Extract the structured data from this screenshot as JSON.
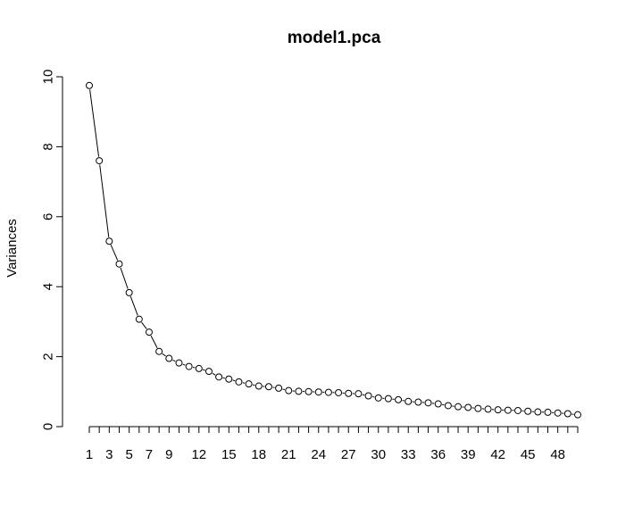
{
  "chart_data": {
    "type": "scatter",
    "title": "model1.pca",
    "xlabel": "",
    "ylabel": "Variances",
    "x": [
      1,
      2,
      3,
      4,
      5,
      6,
      7,
      8,
      9,
      10,
      11,
      12,
      13,
      14,
      15,
      16,
      17,
      18,
      19,
      20,
      21,
      22,
      23,
      24,
      25,
      26,
      27,
      28,
      29,
      30,
      31,
      32,
      33,
      34,
      35,
      36,
      37,
      38,
      39,
      40,
      41,
      42,
      43,
      44,
      45,
      46,
      47,
      48,
      49,
      50
    ],
    "values": [
      9.75,
      7.6,
      5.3,
      4.65,
      3.83,
      3.07,
      2.7,
      2.15,
      1.95,
      1.82,
      1.72,
      1.66,
      1.58,
      1.42,
      1.36,
      1.28,
      1.22,
      1.16,
      1.14,
      1.1,
      1.03,
      1.01,
      1.0,
      0.99,
      0.98,
      0.97,
      0.95,
      0.94,
      0.88,
      0.82,
      0.8,
      0.77,
      0.72,
      0.7,
      0.68,
      0.65,
      0.6,
      0.57,
      0.55,
      0.52,
      0.5,
      0.48,
      0.47,
      0.46,
      0.44,
      0.42,
      0.41,
      0.39,
      0.37,
      0.34
    ],
    "x_tick_labels": [
      "1",
      "3",
      "5",
      "7",
      "9",
      "12",
      "15",
      "18",
      "21",
      "24",
      "27",
      "30",
      "33",
      "36",
      "39",
      "42",
      "45",
      "48"
    ],
    "x_tick_positions": [
      1,
      3,
      5,
      7,
      9,
      12,
      15,
      18,
      21,
      24,
      27,
      30,
      33,
      36,
      39,
      42,
      45,
      48
    ],
    "y_ticks": [
      0,
      2,
      4,
      6,
      8,
      10
    ],
    "y_tick_labels": [
      "0",
      "2",
      "4",
      "6",
      "8",
      "10"
    ],
    "ylim": [
      0,
      10
    ],
    "xlim": [
      1,
      50
    ],
    "grid": false,
    "legend": "none",
    "marker": "open-circle",
    "line_style": "line-and-points"
  }
}
